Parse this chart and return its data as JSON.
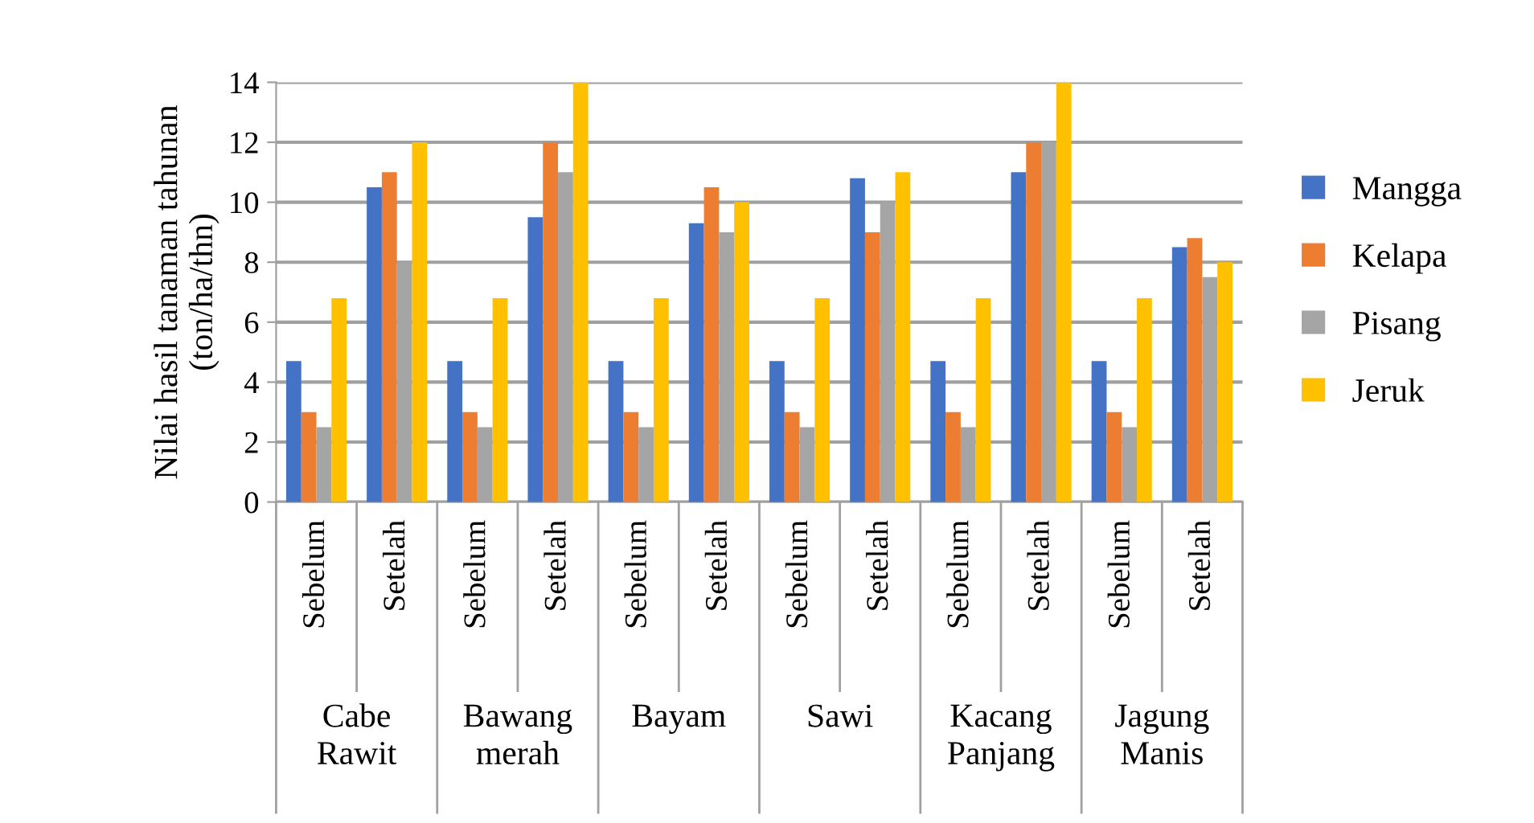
{
  "chart_data": {
    "type": "bar",
    "ylabel": "Nilai hasil tanaman tahunan\n(ton/ha/thn)",
    "categories": [
      "Sebelum",
      "Setelah",
      "Sebelum",
      "Setelah",
      "Sebelum",
      "Setelah",
      "Sebelum",
      "Setelah",
      "Sebelum",
      "Setelah",
      "Sebelum",
      "Setelah"
    ],
    "series": [
      {
        "name": "Mangga",
        "color": "#4472c4",
        "values": [
          4.7,
          10.5,
          4.7,
          9.5,
          4.7,
          9.3,
          4.7,
          10.8,
          4.7,
          11,
          4.7,
          8.5
        ]
      },
      {
        "name": "Kelapa",
        "color": "#ed7d31",
        "values": [
          3,
          11,
          3,
          12,
          3,
          10.5,
          3,
          9,
          3,
          12,
          3,
          8.8
        ]
      },
      {
        "name": "Pisang",
        "color": "#a5a5a5",
        "values": [
          2.5,
          8,
          2.5,
          11,
          2.5,
          9,
          2.5,
          10,
          2.5,
          12,
          2.5,
          7.5
        ]
      },
      {
        "name": "Jeruk",
        "color": "#ffc000",
        "values": [
          6.8,
          12,
          6.8,
          14,
          6.8,
          10,
          6.8,
          11,
          6.8,
          14,
          6.8,
          8
        ]
      }
    ],
    "annotations": [
      "Cabe\nRawit",
      "Bawang\nmerah",
      "Bayam",
      "Sawi",
      "Kacang\nPanjang",
      "Jagung\nManis"
    ],
    "ylim": [
      0,
      14
    ],
    "yticks": [
      0,
      2,
      4,
      6,
      8,
      10,
      12,
      14
    ],
    "grid": "y",
    "legend": "right"
  }
}
